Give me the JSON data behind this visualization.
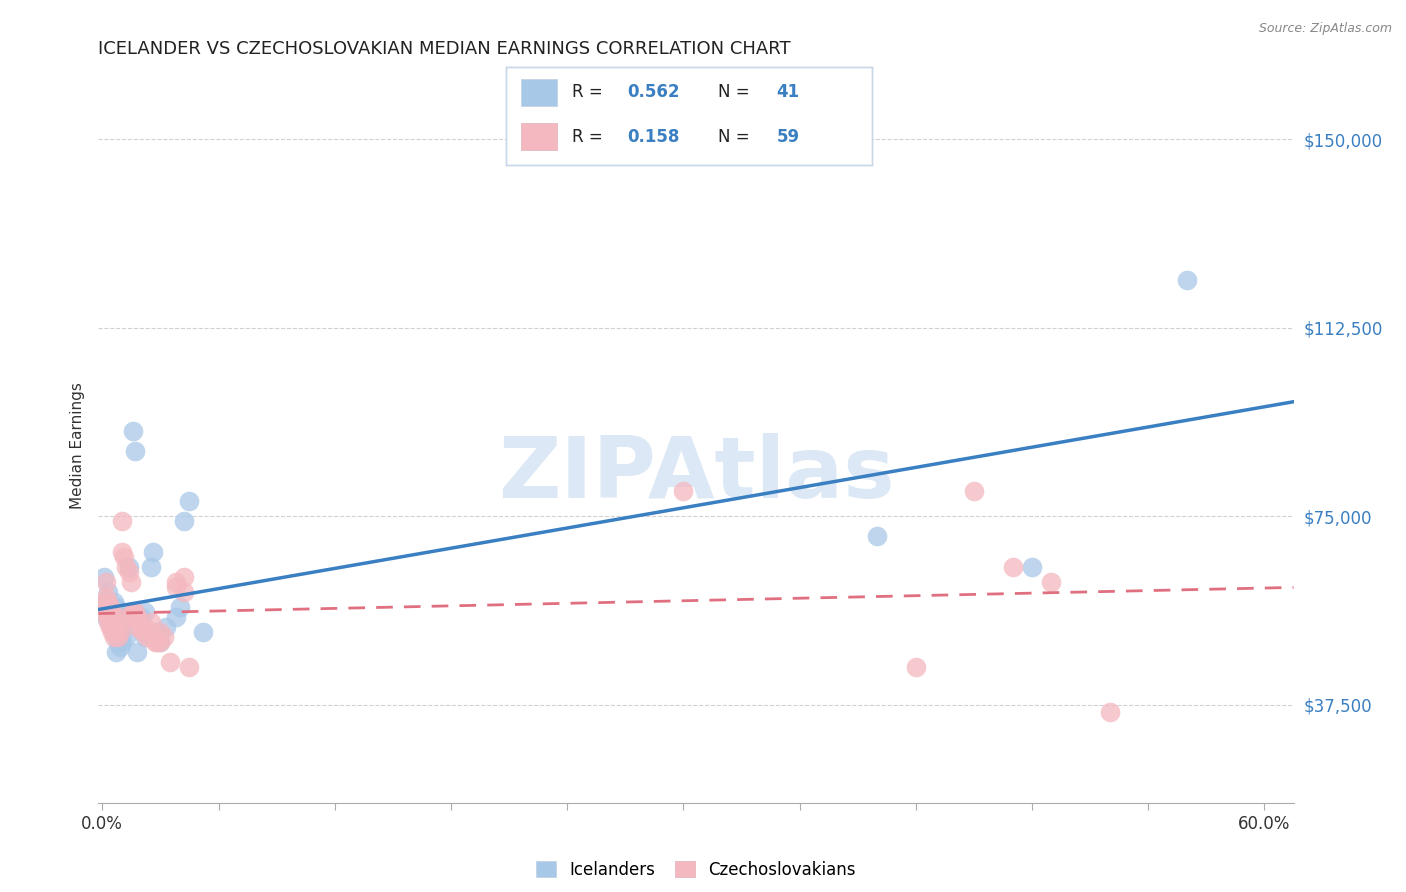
{
  "title": "ICELANDER VS CZECHOSLOVAKIAN MEDIAN EARNINGS CORRELATION CHART",
  "source": "Source: ZipAtlas.com",
  "ylabel": "Median Earnings",
  "y_tick_labels": [
    "$37,500",
    "$75,000",
    "$112,500",
    "$150,000"
  ],
  "y_tick_values": [
    37500,
    75000,
    112500,
    150000
  ],
  "y_min": 18000,
  "y_max": 160000,
  "x_min": -0.002,
  "x_max": 0.615,
  "watermark_text": "ZIPAtlas",
  "icelander_color": "#a8c8e8",
  "czechoslovakian_color": "#f4b8c0",
  "icelander_line_color": "#3a7fc1",
  "czechoslovakian_line_color": "#e07080",
  "legend_box_color": "#f0f4ff",
  "legend_r1_val": "0.562",
  "legend_n1_val": "41",
  "legend_r2_val": "0.158",
  "legend_n2_val": "59",
  "legend_text_color": "#3a7fc1",
  "icelander_points": [
    [
      0.001,
      63000
    ],
    [
      0.002,
      58000
    ],
    [
      0.002,
      55000
    ],
    [
      0.003,
      60000
    ],
    [
      0.003,
      57000
    ],
    [
      0.004,
      56000
    ],
    [
      0.004,
      54000
    ],
    [
      0.005,
      55000
    ],
    [
      0.005,
      53000
    ],
    [
      0.006,
      58000
    ],
    [
      0.006,
      52000
    ],
    [
      0.007,
      57000
    ],
    [
      0.007,
      48000
    ],
    [
      0.008,
      53000
    ],
    [
      0.008,
      50000
    ],
    [
      0.009,
      49000
    ],
    [
      0.01,
      52000
    ],
    [
      0.01,
      50000
    ],
    [
      0.012,
      55000
    ],
    [
      0.012,
      51000
    ],
    [
      0.014,
      65000
    ],
    [
      0.015,
      56000
    ],
    [
      0.016,
      92000
    ],
    [
      0.017,
      88000
    ],
    [
      0.018,
      48000
    ],
    [
      0.02,
      55000
    ],
    [
      0.022,
      56000
    ],
    [
      0.022,
      51000
    ],
    [
      0.025,
      65000
    ],
    [
      0.026,
      68000
    ],
    [
      0.028,
      52000
    ],
    [
      0.03,
      50000
    ],
    [
      0.033,
      53000
    ],
    [
      0.038,
      55000
    ],
    [
      0.04,
      57000
    ],
    [
      0.042,
      74000
    ],
    [
      0.045,
      78000
    ],
    [
      0.052,
      52000
    ],
    [
      0.4,
      71000
    ],
    [
      0.48,
      65000
    ],
    [
      0.56,
      122000
    ]
  ],
  "czechoslovakian_points": [
    [
      0.001,
      58000
    ],
    [
      0.001,
      56000
    ],
    [
      0.002,
      62000
    ],
    [
      0.002,
      59000
    ],
    [
      0.002,
      56000
    ],
    [
      0.003,
      58000
    ],
    [
      0.003,
      55000
    ],
    [
      0.003,
      54000
    ],
    [
      0.004,
      57000
    ],
    [
      0.004,
      55000
    ],
    [
      0.004,
      53000
    ],
    [
      0.005,
      56000
    ],
    [
      0.005,
      54000
    ],
    [
      0.005,
      52000
    ],
    [
      0.006,
      55000
    ],
    [
      0.006,
      53000
    ],
    [
      0.006,
      51000
    ],
    [
      0.007,
      54000
    ],
    [
      0.007,
      52000
    ],
    [
      0.008,
      53000
    ],
    [
      0.008,
      51000
    ],
    [
      0.009,
      52000
    ],
    [
      0.01,
      74000
    ],
    [
      0.01,
      68000
    ],
    [
      0.011,
      67000
    ],
    [
      0.012,
      65000
    ],
    [
      0.013,
      55000
    ],
    [
      0.014,
      64000
    ],
    [
      0.015,
      62000
    ],
    [
      0.015,
      55000
    ],
    [
      0.016,
      56000
    ],
    [
      0.017,
      56000
    ],
    [
      0.018,
      55000
    ],
    [
      0.018,
      53000
    ],
    [
      0.019,
      54000
    ],
    [
      0.02,
      53000
    ],
    [
      0.021,
      52000
    ],
    [
      0.022,
      53000
    ],
    [
      0.023,
      51000
    ],
    [
      0.025,
      54000
    ],
    [
      0.025,
      52000
    ],
    [
      0.026,
      51000
    ],
    [
      0.027,
      50000
    ],
    [
      0.028,
      50000
    ],
    [
      0.03,
      52000
    ],
    [
      0.03,
      50000
    ],
    [
      0.032,
      51000
    ],
    [
      0.035,
      46000
    ],
    [
      0.038,
      62000
    ],
    [
      0.038,
      61000
    ],
    [
      0.042,
      63000
    ],
    [
      0.042,
      60000
    ],
    [
      0.045,
      45000
    ],
    [
      0.3,
      80000
    ],
    [
      0.42,
      45000
    ],
    [
      0.45,
      80000
    ],
    [
      0.47,
      65000
    ],
    [
      0.49,
      62000
    ],
    [
      0.52,
      36000
    ]
  ],
  "background_color": "#ffffff",
  "grid_color": "#cccccc",
  "title_fontsize": 13,
  "axis_label_fontsize": 11,
  "tick_fontsize": 11
}
